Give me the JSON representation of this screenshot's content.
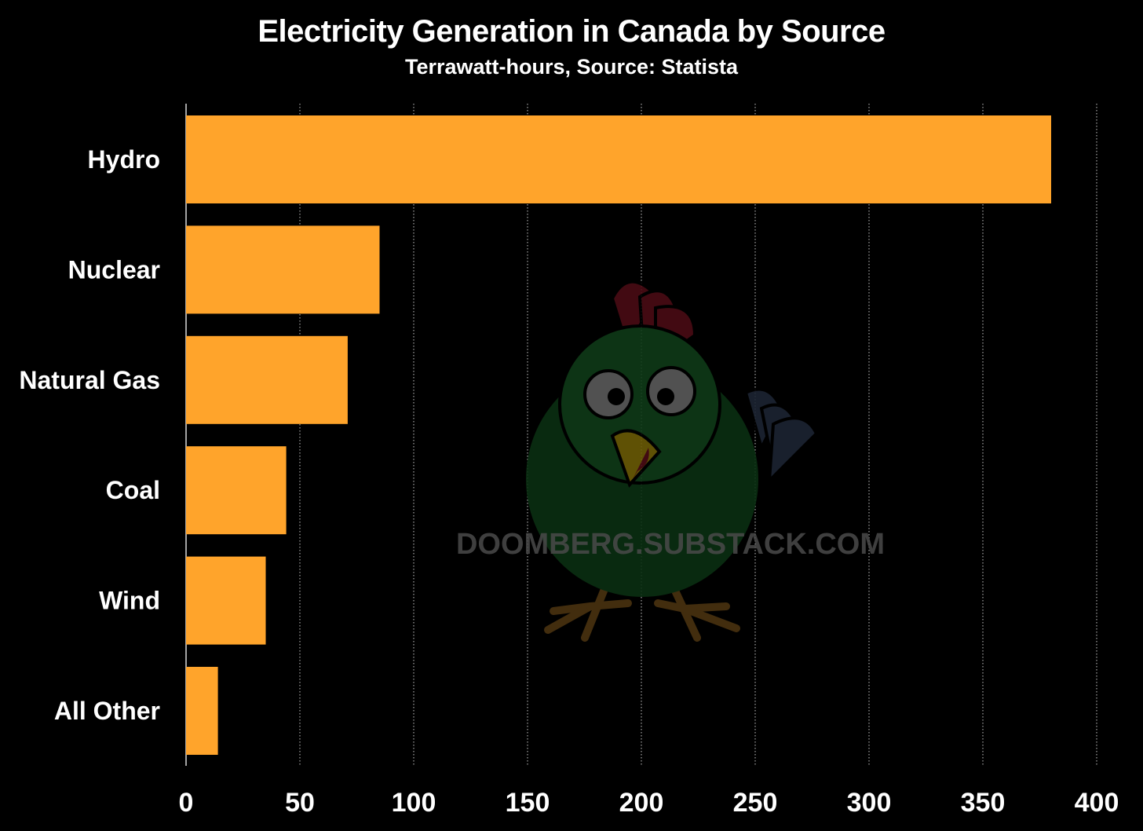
{
  "chart_data": {
    "type": "bar",
    "orientation": "horizontal",
    "title": "Electricity Generation in Canada by Source",
    "subtitle": "Terrawatt-hours, Source: Statista",
    "categories": [
      "Hydro",
      "Nuclear",
      "Natural Gas",
      "Coal",
      "Wind",
      "All Other"
    ],
    "values": [
      380,
      85,
      71,
      44,
      35,
      14
    ],
    "xlim": [
      0,
      400
    ],
    "x_ticks": [
      0,
      50,
      100,
      150,
      200,
      250,
      300,
      350,
      400
    ],
    "x_tick_labels": [
      "0",
      "50",
      "100",
      "150",
      "200",
      "250",
      "300",
      "350",
      "400"
    ],
    "xlabel": "",
    "ylabel": "",
    "grid": "vertical dotted",
    "legend": "none",
    "bar_color": "#ffa42b",
    "background_color": "#000000",
    "grid_color": "#c8c8c8",
    "watermark": {
      "text": "DOOMBERG.SUBSTACK.COM",
      "icon": "chicken-mascot-icon"
    }
  }
}
